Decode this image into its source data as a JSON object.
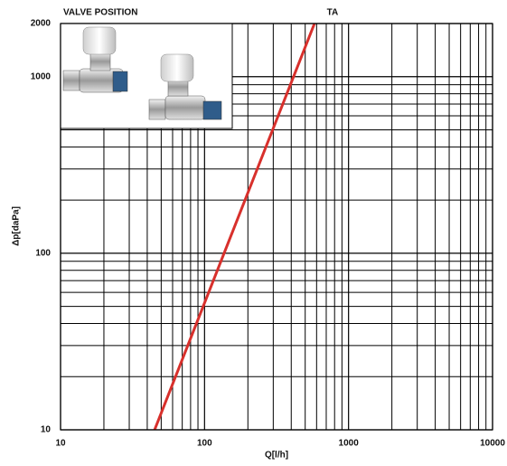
{
  "chart_data": {
    "type": "line",
    "title": "VALVE POSITION",
    "x_label": "Q[l/h]",
    "y_label": "Δp[daPa]",
    "x": [
      45,
      580
    ],
    "series": [
      {
        "name": "TA",
        "color": "#d8302c",
        "values": [
          10,
          2000
        ]
      }
    ],
    "xscale": "log",
    "yscale": "log",
    "xlim": [
      10,
      10000
    ],
    "ylim": [
      10,
      2000
    ],
    "xticks": [
      10,
      100,
      1000,
      10000
    ],
    "yticks": [
      10,
      100,
      1000,
      2000
    ],
    "grid": true
  }
}
